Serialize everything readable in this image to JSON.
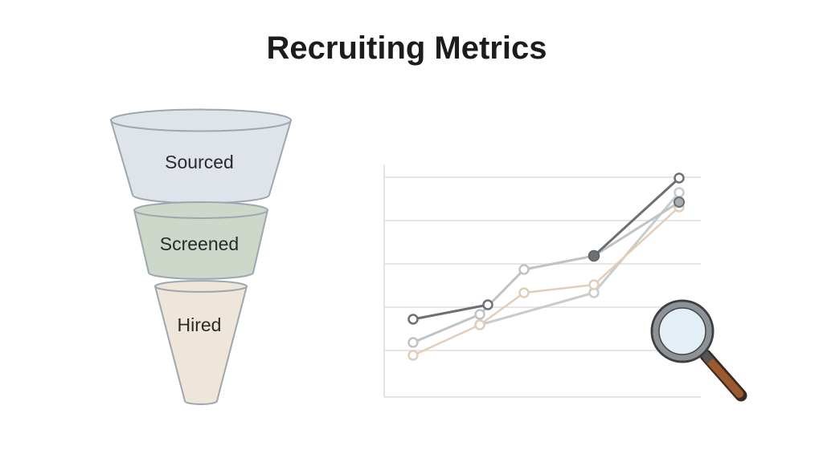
{
  "title": "Recruiting Metrics",
  "funnel": {
    "stages": [
      {
        "label": "Sourced",
        "color": "#dfe3ea"
      },
      {
        "label": "Screened",
        "color": "#cdd7ca"
      },
      {
        "label": "Hired",
        "color": "#eee6db"
      }
    ],
    "outline_color": "#9ea6b0"
  },
  "trend_chart": {
    "series_colors": [
      "#6b7077",
      "#bfc3c4",
      "#e3cdb8",
      "#c9cccc"
    ],
    "grid": true
  },
  "icons": [
    "magnifying-glass-icon"
  ]
}
